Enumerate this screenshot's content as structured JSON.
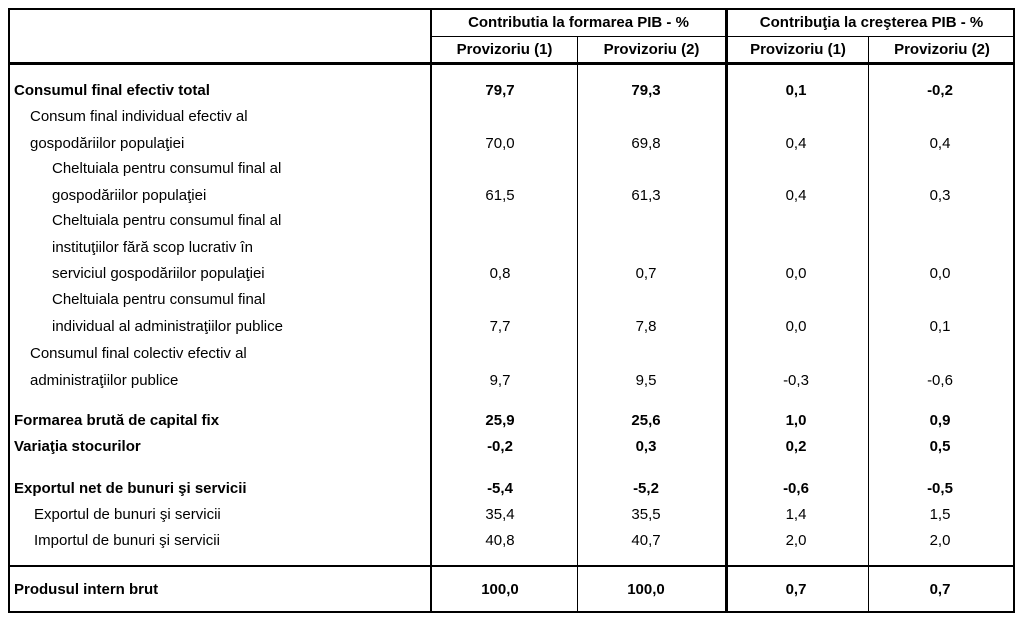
{
  "header": {
    "group1": "Contributia la formarea PIB - %",
    "group2": "Contribuţia la creşterea PIB - %",
    "cols": [
      "Provizoriu (1)",
      "Provizoriu (2)",
      "Provizoriu (1)",
      "Provizoriu (2)"
    ]
  },
  "rows": [
    {
      "label": "Consumul final  efectiv total",
      "values": [
        "79,7",
        "79,3",
        "0,1",
        "-0,2"
      ]
    },
    {
      "label": "Consum final individual efectiv al\ngospodăriilor populaţiei",
      "values": [
        "70,0",
        "69,8",
        "0,4",
        "0,4"
      ]
    },
    {
      "label": "Cheltuiala pentru consumul final al\ngospodăriilor populaţiei",
      "values": [
        "61,5",
        "61,3",
        "0,4",
        "0,3"
      ]
    },
    {
      "label": "Cheltuiala pentru consumul final al\ninstituţiilor fără scop lucrativ în\nserviciul gospodăriilor populaţiei",
      "values": [
        "0,8",
        "0,7",
        "0,0",
        "0,0"
      ]
    },
    {
      "label": "Cheltuiala pentru consumul final\nindividual al administraţiilor publice",
      "values": [
        "7,7",
        "7,8",
        "0,0",
        "0,1"
      ]
    },
    {
      "label": "Consumul final colectiv efectiv al\nadministraţiilor publice",
      "values": [
        "9,7",
        "9,5",
        "-0,3",
        "-0,6"
      ]
    },
    {
      "label": "Formarea brută de capital fix",
      "values": [
        "25,9",
        "25,6",
        "1,0",
        "0,9"
      ]
    },
    {
      "label": "Variaţia stocurilor",
      "values": [
        "-0,2",
        "0,3",
        "0,2",
        "0,5"
      ]
    },
    {
      "label": "Exportul net de bunuri şi servicii",
      "values": [
        "-5,4",
        "-5,2",
        "-0,6",
        "-0,5"
      ]
    },
    {
      "label": "Exportul de bunuri şi servicii",
      "values": [
        "35,4",
        "35,5",
        "1,4",
        "1,5"
      ]
    },
    {
      "label": "Importul de bunuri şi servicii",
      "values": [
        "40,8",
        "40,7",
        "2,0",
        "2,0"
      ]
    },
    {
      "label": "Produsul intern brut",
      "values": [
        "100,0",
        "100,0",
        "0,7",
        "0,7"
      ]
    }
  ]
}
